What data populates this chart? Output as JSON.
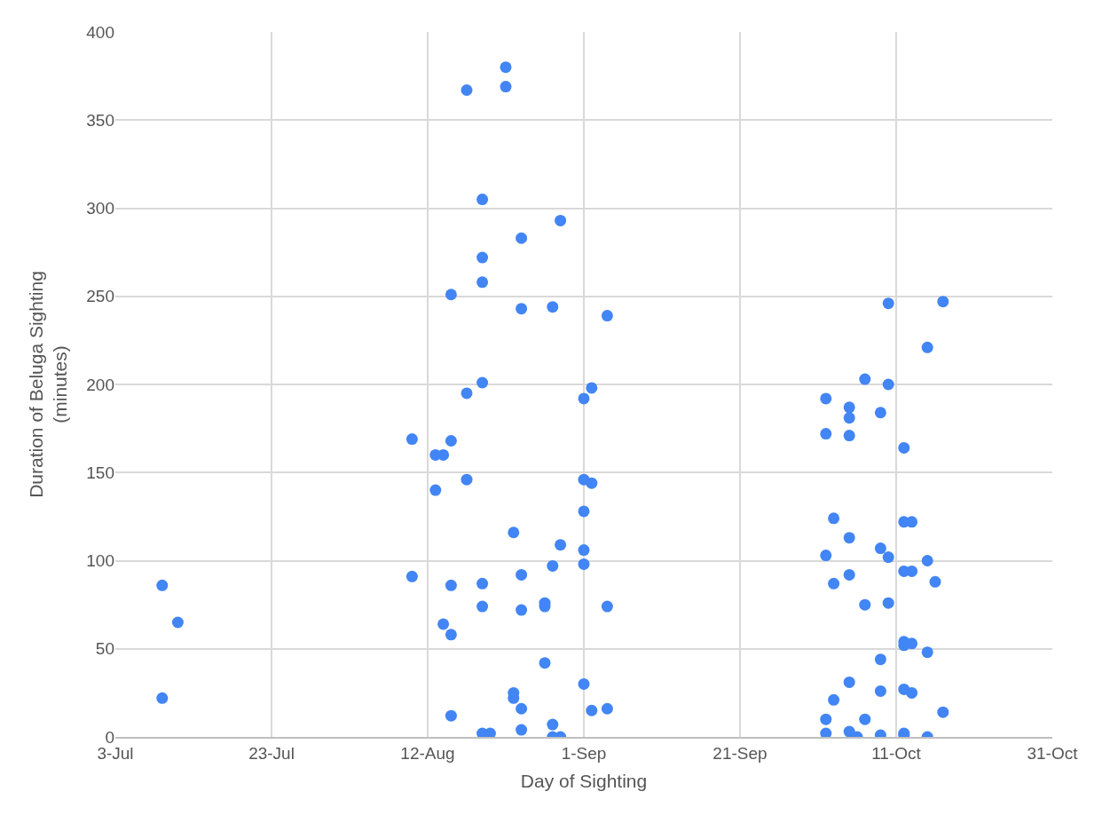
{
  "chart_data": {
    "type": "scatter",
    "xlabel": "Day of Sighting",
    "ylabel": "Duration of Beluga Sighting (minutes)",
    "x": [
      "--07-09",
      "--07-11",
      "--07-09",
      "--08-10",
      "--08-10",
      "--08-13",
      "--08-13",
      "--08-14",
      "--08-15",
      "--08-15",
      "--08-14",
      "--08-15",
      "--08-15",
      "--08-15",
      "--08-17",
      "--08-17",
      "--08-17",
      "--08-19",
      "--08-19",
      "--08-19",
      "--08-19",
      "--08-19",
      "--08-19",
      "--08-19",
      "--08-20",
      "--08-22",
      "--08-22",
      "--08-23",
      "--08-23",
      "--08-23",
      "--08-24",
      "--08-24",
      "--08-24",
      "--08-24",
      "--08-24",
      "--08-24",
      "--08-27",
      "--08-27",
      "--08-27",
      "--08-28",
      "--08-28",
      "--08-28",
      "--08-28",
      "--08-29",
      "--08-29",
      "--08-29",
      "--09-01",
      "--09-02",
      "--09-01",
      "--09-02",
      "--09-01",
      "--09-01",
      "--09-01",
      "--09-01",
      "--09-02",
      "--09-04",
      "--09-04",
      "--09-04",
      "--10-02",
      "--10-02",
      "--10-03",
      "--10-02",
      "--10-03",
      "--10-03",
      "--10-02",
      "--10-02",
      "--10-05",
      "--10-05",
      "--10-05",
      "--10-05",
      "--10-05",
      "--10-05",
      "--10-05",
      "--10-06",
      "--10-07",
      "--10-07",
      "--10-07",
      "--10-09",
      "--10-09",
      "--10-09",
      "--10-09",
      "--10-09",
      "--10-10",
      "--10-10",
      "--10-10",
      "--10-10",
      "--10-12",
      "--10-12",
      "--10-13",
      "--10-12",
      "--10-12",
      "--10-13",
      "--10-12",
      "--10-12",
      "--10-12",
      "--10-12",
      "--10-13",
      "--10-13",
      "--10-15",
      "--10-17",
      "--10-15",
      "--10-16",
      "--10-15",
      "--10-17",
      "--10-15"
    ],
    "values": [
      86,
      65,
      22,
      169,
      91,
      140,
      160,
      160,
      168,
      251,
      64,
      58,
      86,
      12,
      367,
      195,
      146,
      305,
      272,
      258,
      201,
      87,
      74,
      2,
      2,
      380,
      369,
      116,
      25,
      22,
      283,
      243,
      92,
      72,
      16,
      4,
      76,
      74,
      42,
      244,
      97,
      7,
      0,
      0,
      293,
      109,
      192,
      198,
      146,
      144,
      128,
      106,
      98,
      30,
      15,
      16,
      239,
      74,
      192,
      172,
      124,
      103,
      87,
      21,
      10,
      2,
      187,
      181,
      171,
      113,
      92,
      31,
      3,
      0,
      203,
      75,
      10,
      184,
      107,
      44,
      26,
      1,
      246,
      200,
      102,
      76,
      122,
      94,
      94,
      54,
      52,
      53,
      27,
      2,
      1,
      164,
      122,
      25,
      221,
      247,
      100,
      88,
      48,
      14,
      0
    ],
    "color": "#4285f4",
    "marker": "circle",
    "xlim": [
      "--07-03",
      "--10-31"
    ],
    "xticks": [
      {
        "value": "--07-03",
        "label": "3-Jul"
      },
      {
        "value": "--07-23",
        "label": "23-Jul"
      },
      {
        "value": "--08-12",
        "label": "12-Aug"
      },
      {
        "value": "--09-01",
        "label": "1-Sep"
      },
      {
        "value": "--09-21",
        "label": "21-Sep"
      },
      {
        "value": "--10-11",
        "label": "11-Oct"
      },
      {
        "value": "--10-31",
        "label": "31-Oct"
      }
    ],
    "ylim": [
      0,
      400
    ],
    "yticks": [
      0,
      50,
      100,
      150,
      200,
      250,
      300,
      350,
      400
    ],
    "grid": true,
    "legend": false
  }
}
